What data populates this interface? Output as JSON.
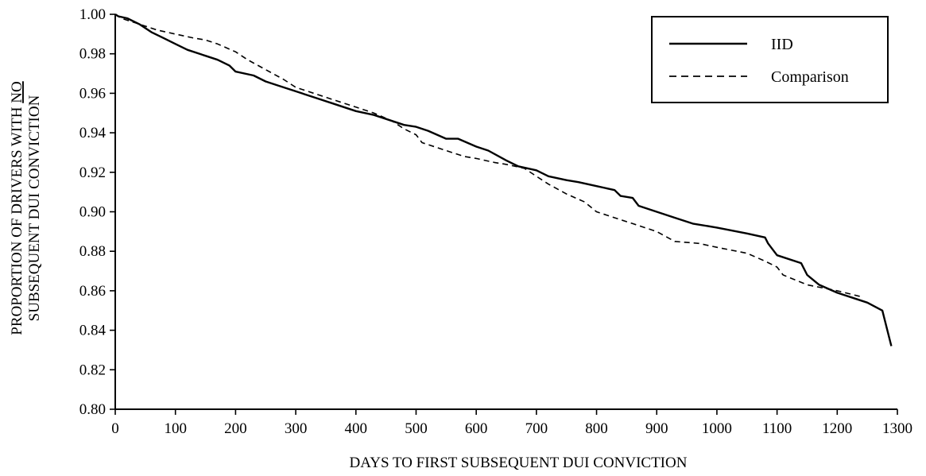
{
  "chart_data": {
    "type": "line",
    "title": "",
    "xlabel": "DAYS TO FIRST SUBSEQUENT DUI CONVICTION",
    "ylabel_line1": "PROPORTION OF DRIVERS WITH NO",
    "ylabel_line1_prefix": "PROPORTION OF DRIVERS WITH ",
    "ylabel_line1_underlined": "NO",
    "ylabel_line2": "SUBSEQUENT DUI CONVICTION",
    "xlim": [
      0,
      1300
    ],
    "ylim": [
      0.8,
      1.0
    ],
    "x_ticks": [
      "0",
      "100",
      "200",
      "300",
      "400",
      "500",
      "600",
      "700",
      "800",
      "900",
      "1000",
      "1100",
      "1200",
      "1300"
    ],
    "y_ticks": [
      "0.80",
      "0.82",
      "0.84",
      "0.86",
      "0.88",
      "0.90",
      "0.92",
      "0.94",
      "0.96",
      "0.98",
      "1.00"
    ],
    "grid": false,
    "legend_position": "top-right",
    "legend": [
      {
        "name": "IID",
        "style": "solid"
      },
      {
        "name": "Comparison",
        "style": "dashed"
      }
    ],
    "series": [
      {
        "name": "IID",
        "style": "solid",
        "color": "#000000",
        "x": [
          0,
          5,
          20,
          40,
          60,
          80,
          100,
          120,
          150,
          170,
          190,
          200,
          230,
          250,
          270,
          300,
          330,
          360,
          380,
          400,
          430,
          460,
          480,
          500,
          520,
          550,
          570,
          600,
          620,
          650,
          670,
          700,
          720,
          750,
          770,
          800,
          830,
          840,
          860,
          870,
          900,
          930,
          960,
          1000,
          1050,
          1080,
          1085,
          1100,
          1140,
          1150,
          1170,
          1200,
          1230,
          1250,
          1275,
          1290
        ],
        "y": [
          1.0,
          0.999,
          0.998,
          0.995,
          0.991,
          0.988,
          0.985,
          0.982,
          0.979,
          0.977,
          0.974,
          0.971,
          0.969,
          0.966,
          0.964,
          0.961,
          0.958,
          0.955,
          0.953,
          0.951,
          0.949,
          0.946,
          0.944,
          0.943,
          0.941,
          0.937,
          0.937,
          0.933,
          0.931,
          0.926,
          0.923,
          0.921,
          0.918,
          0.916,
          0.915,
          0.913,
          0.911,
          0.908,
          0.907,
          0.903,
          0.9,
          0.897,
          0.894,
          0.892,
          0.889,
          0.887,
          0.884,
          0.878,
          0.874,
          0.868,
          0.863,
          0.859,
          0.856,
          0.854,
          0.85,
          0.832
        ]
      },
      {
        "name": "Comparison",
        "style": "dashed",
        "color": "#000000",
        "x": [
          0,
          10,
          30,
          50,
          70,
          100,
          130,
          150,
          170,
          200,
          220,
          250,
          280,
          300,
          330,
          360,
          400,
          430,
          460,
          480,
          500,
          510,
          530,
          550,
          580,
          600,
          630,
          650,
          680,
          700,
          720,
          750,
          780,
          800,
          830,
          860,
          900,
          930,
          970,
          1000,
          1050,
          1080,
          1100,
          1110,
          1150,
          1200,
          1240
        ],
        "y": [
          1.0,
          0.998,
          0.996,
          0.994,
          0.992,
          0.99,
          0.988,
          0.987,
          0.985,
          0.981,
          0.977,
          0.972,
          0.967,
          0.963,
          0.96,
          0.957,
          0.953,
          0.95,
          0.946,
          0.942,
          0.939,
          0.935,
          0.933,
          0.931,
          0.928,
          0.927,
          0.925,
          0.924,
          0.922,
          0.918,
          0.914,
          0.909,
          0.905,
          0.9,
          0.897,
          0.894,
          0.89,
          0.885,
          0.884,
          0.882,
          0.879,
          0.875,
          0.872,
          0.868,
          0.863,
          0.86,
          0.857
        ]
      }
    ]
  }
}
